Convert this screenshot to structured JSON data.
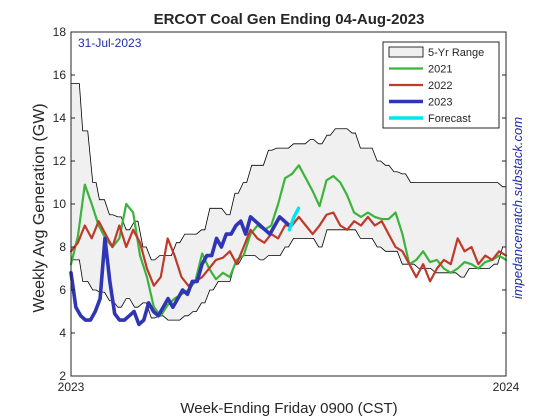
{
  "chart_data": {
    "type": "line",
    "title": "ERCOT Coal Gen Ending 04-Aug-2023",
    "date_note": "31-Jul-2023",
    "ylabel": "Weekly Avg Generation (GW)",
    "xlabel": "Week-Ending Friday 0900 (CST)",
    "watermark": "impedancematch.substack.com",
    "ylim": [
      2,
      18
    ],
    "yticks": [
      2,
      4,
      6,
      8,
      10,
      12,
      14,
      16,
      18
    ],
    "xlim": [
      0,
      52
    ],
    "xticks": [
      {
        "value": 0,
        "label": "2023"
      },
      {
        "value": 52,
        "label": "2024"
      }
    ],
    "legend_position": "top-right",
    "grid": false,
    "colors": {
      "range_fill": "#f0f0f0",
      "range_edge": "#000000",
      "s2021": "#3cb43c",
      "s2022": "#c0392b",
      "s2023": "#2f35b4",
      "forecast": "#00e5ee"
    },
    "range": {
      "name": "5-Yr Range",
      "upper": [
        [
          0,
          15.6
        ],
        [
          1,
          15.6
        ],
        [
          1.4,
          13.4
        ],
        [
          2,
          13.4
        ],
        [
          2.6,
          11.0
        ],
        [
          3,
          11.0
        ],
        [
          3.4,
          10.2
        ],
        [
          4,
          10.2
        ],
        [
          4.6,
          9.5
        ],
        [
          5,
          9.5
        ],
        [
          5.6,
          9.4
        ],
        [
          6,
          9.4
        ],
        [
          6.6,
          8.8
        ],
        [
          7,
          8.8
        ],
        [
          7.6,
          9.2
        ],
        [
          8,
          9.2
        ],
        [
          8.6,
          8.0
        ],
        [
          9,
          8.0
        ],
        [
          9.6,
          7.4
        ],
        [
          10,
          7.4
        ],
        [
          10.6,
          7.6
        ],
        [
          11,
          7.6
        ],
        [
          11.6,
          7.6
        ],
        [
          12,
          7.6
        ],
        [
          12.6,
          8.2
        ],
        [
          13,
          8.2
        ],
        [
          13.6,
          8.6
        ],
        [
          14,
          8.6
        ],
        [
          14.6,
          8.6
        ],
        [
          15,
          8.6
        ],
        [
          15.6,
          8.8
        ],
        [
          16,
          8.8
        ],
        [
          16.6,
          9.8
        ],
        [
          17,
          9.8
        ],
        [
          17.6,
          9.8
        ],
        [
          18,
          9.8
        ],
        [
          18.6,
          9.5
        ],
        [
          19,
          9.5
        ],
        [
          19.6,
          10.5
        ],
        [
          20,
          10.5
        ],
        [
          20.6,
          11.0
        ],
        [
          21,
          11.0
        ],
        [
          21.6,
          11.8
        ],
        [
          22,
          11.8
        ],
        [
          22.6,
          11.8
        ],
        [
          23,
          11.8
        ],
        [
          23.6,
          12.5
        ],
        [
          24,
          12.5
        ],
        [
          24.6,
          12.6
        ],
        [
          25,
          12.6
        ],
        [
          25.6,
          12.6
        ],
        [
          26,
          12.6
        ],
        [
          26.6,
          12.8
        ],
        [
          27,
          12.8
        ],
        [
          27.6,
          12.8
        ],
        [
          28,
          12.8
        ],
        [
          28.6,
          13.0
        ],
        [
          29,
          13.0
        ],
        [
          29.6,
          12.8
        ],
        [
          30,
          12.8
        ],
        [
          30.6,
          13.2
        ],
        [
          31,
          13.2
        ],
        [
          31.6,
          13.5
        ],
        [
          32,
          13.5
        ],
        [
          32.6,
          13.5
        ],
        [
          33,
          13.5
        ],
        [
          33.6,
          13.3
        ],
        [
          34,
          13.3
        ],
        [
          34.6,
          12.6
        ],
        [
          35,
          12.6
        ],
        [
          35.6,
          12.6
        ],
        [
          36,
          12.6
        ],
        [
          36.6,
          12.0
        ],
        [
          37,
          12.0
        ],
        [
          37.6,
          11.8
        ],
        [
          38,
          11.8
        ],
        [
          38.6,
          11.5
        ],
        [
          39,
          11.5
        ],
        [
          39.6,
          11.4
        ],
        [
          40,
          11.4
        ],
        [
          40.6,
          11.0
        ],
        [
          41,
          11.0
        ],
        [
          41.6,
          11.0
        ],
        [
          42,
          11.0
        ],
        [
          42.6,
          11.0
        ],
        [
          43,
          11.0
        ],
        [
          43.6,
          11.0
        ],
        [
          44,
          11.0
        ],
        [
          44.6,
          11.0
        ],
        [
          45,
          11.0
        ],
        [
          45.6,
          11.0
        ],
        [
          46,
          11.0
        ],
        [
          46.6,
          11.0
        ],
        [
          47,
          11.0
        ],
        [
          47.6,
          11.0
        ],
        [
          48,
          11.0
        ],
        [
          48.6,
          11.0
        ],
        [
          49,
          11.0
        ],
        [
          49.6,
          11.0
        ],
        [
          50,
          11.0
        ],
        [
          50.6,
          11.0
        ],
        [
          51,
          11.0
        ],
        [
          51.6,
          10.8
        ],
        [
          52,
          10.8
        ]
      ],
      "lower": [
        [
          0,
          7.4
        ],
        [
          1,
          7.4
        ],
        [
          1.4,
          6.4
        ],
        [
          2,
          6.4
        ],
        [
          2.6,
          6.0
        ],
        [
          3,
          6.0
        ],
        [
          3.4,
          5.9
        ],
        [
          4,
          5.9
        ],
        [
          4.6,
          5.5
        ],
        [
          5,
          5.5
        ],
        [
          5.6,
          5.2
        ],
        [
          6,
          5.2
        ],
        [
          6.6,
          5.6
        ],
        [
          7,
          5.6
        ],
        [
          7.6,
          5.2
        ],
        [
          8,
          5.2
        ],
        [
          8.6,
          5.4
        ],
        [
          9,
          5.4
        ],
        [
          9.6,
          4.7
        ],
        [
          10,
          4.7
        ],
        [
          10.6,
          4.8
        ],
        [
          11,
          4.8
        ],
        [
          11.6,
          4.6
        ],
        [
          12,
          4.6
        ],
        [
          12.6,
          4.6
        ],
        [
          13,
          4.6
        ],
        [
          13.6,
          4.8
        ],
        [
          14,
          4.8
        ],
        [
          14.6,
          5.0
        ],
        [
          15,
          5.0
        ],
        [
          15.6,
          5.4
        ],
        [
          16,
          5.4
        ],
        [
          16.6,
          6.0
        ],
        [
          17,
          6.0
        ],
        [
          17.6,
          6.4
        ],
        [
          18,
          6.4
        ],
        [
          18.6,
          6.4
        ],
        [
          19,
          6.4
        ],
        [
          19.6,
          7.2
        ],
        [
          20,
          7.2
        ],
        [
          20.6,
          7.6
        ],
        [
          21,
          7.6
        ],
        [
          21.6,
          7.6
        ],
        [
          22,
          7.6
        ],
        [
          22.6,
          7.4
        ],
        [
          23,
          7.4
        ],
        [
          23.6,
          7.6
        ],
        [
          24,
          7.6
        ],
        [
          24.6,
          7.6
        ],
        [
          25,
          7.6
        ],
        [
          25.6,
          8.0
        ],
        [
          26,
          8.0
        ],
        [
          26.6,
          8.4
        ],
        [
          27,
          8.4
        ],
        [
          27.6,
          8.4
        ],
        [
          28,
          8.4
        ],
        [
          28.6,
          8.4
        ],
        [
          29,
          8.4
        ],
        [
          29.6,
          8.0
        ],
        [
          30,
          8.0
        ],
        [
          30.6,
          8.8
        ],
        [
          31,
          8.8
        ],
        [
          31.6,
          8.8
        ],
        [
          32,
          8.8
        ],
        [
          32.6,
          8.8
        ],
        [
          33,
          8.8
        ],
        [
          33.6,
          8.8
        ],
        [
          34,
          8.8
        ],
        [
          34.6,
          8.4
        ],
        [
          35,
          8.4
        ],
        [
          35.6,
          8.4
        ],
        [
          36,
          8.4
        ],
        [
          36.6,
          8.0
        ],
        [
          37,
          8.0
        ],
        [
          37.6,
          7.8
        ],
        [
          38,
          7.8
        ],
        [
          38.6,
          7.8
        ],
        [
          39,
          7.8
        ],
        [
          39.6,
          7.2
        ],
        [
          40,
          7.2
        ],
        [
          40.6,
          7.2
        ],
        [
          41,
          7.2
        ],
        [
          41.6,
          7.0
        ],
        [
          42,
          7.0
        ],
        [
          42.6,
          7.0
        ],
        [
          43,
          7.0
        ],
        [
          43.6,
          6.8
        ],
        [
          44,
          6.8
        ],
        [
          44.6,
          6.8
        ],
        [
          45,
          6.8
        ],
        [
          45.6,
          6.8
        ],
        [
          46,
          6.8
        ],
        [
          46.6,
          6.6
        ],
        [
          47,
          6.6
        ],
        [
          47.6,
          7.0
        ],
        [
          48,
          7.0
        ],
        [
          48.6,
          7.0
        ],
        [
          49,
          7.0
        ],
        [
          49.6,
          7.0
        ],
        [
          50,
          7.0
        ],
        [
          50.6,
          7.2
        ],
        [
          51,
          7.2
        ],
        [
          51.6,
          8.0
        ],
        [
          52,
          8.0
        ]
      ]
    },
    "series": [
      {
        "name": "2021",
        "color": "#3cb43c",
        "values": [
          7.2,
          8.5,
          10.9,
          10.0,
          9.0,
          8.4,
          8.0,
          8.4,
          10.0,
          9.6,
          7.6,
          6.6,
          5.2,
          4.8,
          5.3,
          5.6,
          5.8,
          6.0,
          6.4,
          7.7,
          7.0,
          6.5,
          6.8,
          6.6,
          7.4,
          7.6,
          8.6,
          9.0,
          8.8,
          9.0,
          10.0,
          11.2,
          11.4,
          11.8,
          11.2,
          10.6,
          9.9,
          11.1,
          11.3,
          11.0,
          10.4,
          9.6,
          9.4,
          9.6,
          9.4,
          9.3,
          9.3,
          9.6,
          8.6,
          7.2,
          7.4,
          7.8,
          7.3,
          7.4,
          7.0,
          6.8,
          7.0,
          7.3,
          7.2,
          7.0,
          7.3,
          7.4,
          7.6,
          7.4
        ]
      },
      {
        "name": "2022",
        "color": "#c0392b",
        "values": [
          7.8,
          8.2,
          9.0,
          8.4,
          9.2,
          8.6,
          8.0,
          9.0,
          8.0,
          8.8,
          8.2,
          7.0,
          6.2,
          6.6,
          8.4,
          7.6,
          6.6,
          6.2,
          6.4,
          6.6,
          7.0,
          7.4,
          7.5,
          7.8,
          7.2,
          8.0,
          8.8,
          8.4,
          8.2,
          8.6,
          8.4,
          9.0,
          9.0,
          9.4,
          9.0,
          8.6,
          9.0,
          9.5,
          9.6,
          9.0,
          8.8,
          9.2,
          9.0,
          9.4,
          9.0,
          9.2,
          8.6,
          8.0,
          7.8,
          7.2,
          6.6,
          7.2,
          6.4,
          7.0,
          7.4,
          7.2,
          8.4,
          7.8,
          8.0,
          7.2,
          7.6,
          7.4,
          7.8,
          7.6
        ]
      },
      {
        "name": "2023",
        "color": "#2f35b4",
        "values": [
          6.8,
          5.2,
          4.8,
          4.6,
          4.6,
          5.0,
          5.6,
          8.4,
          6.4,
          4.9,
          4.6,
          4.6,
          4.8,
          5.0,
          4.4,
          4.6,
          5.4,
          5.0,
          4.8,
          5.2,
          5.6,
          5.2,
          5.6,
          6.0,
          5.8,
          6.4,
          6.4,
          7.2,
          7.6,
          7.6,
          8.4,
          8.0,
          8.6,
          8.6,
          9.0,
          9.2,
          8.6,
          9.4,
          9.2,
          9.0,
          8.8,
          8.6,
          9.0,
          9.4,
          9.2,
          9.0
        ]
      },
      {
        "name": "Forecast",
        "color": "#00e5ee",
        "values": [
          8.8,
          9.4,
          9.8
        ]
      }
    ]
  }
}
